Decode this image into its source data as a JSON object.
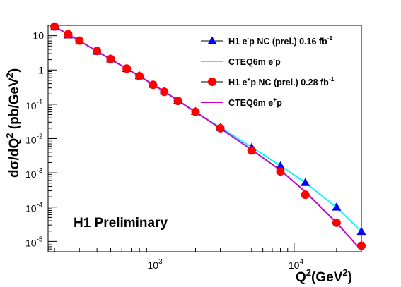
{
  "chart_data": {
    "type": "scatter",
    "xscale": "log",
    "yscale": "log",
    "xlim": [
      180,
      30000
    ],
    "ylim": [
      5e-06,
      20
    ],
    "xlabel": {
      "base": "Q",
      "sup": "2",
      "rest": "(GeV",
      "sup2": "2",
      "close": ")"
    },
    "ylabel": {
      "parts": [
        "dσ/dQ",
        "2",
        " (pb/GeV",
        "2",
        ")"
      ]
    },
    "x_ticks": [
      {
        "value": 1000,
        "base": "10",
        "exp": "3"
      },
      {
        "value": 10000,
        "base": "10",
        "exp": "4"
      }
    ],
    "y_ticks": [
      {
        "value": 10,
        "label": "10"
      },
      {
        "value": 1,
        "label": "1"
      },
      {
        "value": 0.1,
        "base": "10",
        "exp": "-1"
      },
      {
        "value": 0.01,
        "base": "10",
        "exp": "-2"
      },
      {
        "value": 0.001,
        "base": "10",
        "exp": "-3"
      },
      {
        "value": 0.0001,
        "base": "10",
        "exp": "-4"
      },
      {
        "value": 1e-05,
        "base": "10",
        "exp": "-5"
      }
    ],
    "annotation": "H1 Preliminary",
    "legend_position": "top-right",
    "series": [
      {
        "name": "H1 e-p NC (prel.) 0.16 fb-1",
        "legend_parts": [
          "H1 e",
          "-",
          "p NC (prel.) 0.16 fb",
          "-1"
        ],
        "marker": "triangle",
        "color": "#0000ff",
        "points": [
          [
            200,
            18
          ],
          [
            250,
            10.5
          ],
          [
            300,
            7.0
          ],
          [
            400,
            3.5
          ],
          [
            500,
            2.1
          ],
          [
            650,
            1.1
          ],
          [
            800,
            0.68
          ],
          [
            1000,
            0.38
          ],
          [
            1200,
            0.24
          ],
          [
            1500,
            0.13
          ],
          [
            2000,
            0.062
          ],
          [
            3000,
            0.021
          ],
          [
            5000,
            0.0055
          ],
          [
            8000,
            0.0016
          ],
          [
            12000,
            0.00052
          ],
          [
            20000,
            0.0001
          ],
          [
            30000,
            1.95e-05
          ]
        ]
      },
      {
        "name": "CTEQ6m e-p",
        "legend_parts": [
          "CTEQ6m e",
          "-",
          "p",
          ""
        ],
        "marker": "line",
        "color": "#00ffff",
        "points": [
          [
            200,
            18.5
          ],
          [
            300,
            7.1
          ],
          [
            500,
            2.05
          ],
          [
            800,
            0.67
          ],
          [
            1200,
            0.24
          ],
          [
            2000,
            0.06
          ],
          [
            3000,
            0.021
          ],
          [
            5000,
            0.0056
          ],
          [
            8000,
            0.0016
          ],
          [
            12000,
            0.00052
          ],
          [
            20000,
            9.8e-05
          ],
          [
            30000,
            1.95e-05
          ]
        ]
      },
      {
        "name": "H1 e+p NC (prel.) 0.28 fb-1",
        "legend_parts": [
          "H1 e",
          "+",
          "p NC (prel.) 0.28 fb",
          "-1"
        ],
        "marker": "circle",
        "color": "#ff0000",
        "points": [
          [
            200,
            18.5
          ],
          [
            250,
            11
          ],
          [
            300,
            7.2
          ],
          [
            400,
            3.6
          ],
          [
            500,
            2.1
          ],
          [
            650,
            1.1
          ],
          [
            800,
            0.66
          ],
          [
            1000,
            0.37
          ],
          [
            1200,
            0.23
          ],
          [
            1500,
            0.125
          ],
          [
            2000,
            0.06
          ],
          [
            3000,
            0.02
          ],
          [
            5000,
            0.0045
          ],
          [
            8000,
            0.0011
          ],
          [
            12000,
            0.00023
          ],
          [
            20000,
            3.5e-05
          ],
          [
            30000,
            7.5e-06
          ]
        ]
      },
      {
        "name": "CTEQ6m e+p",
        "legend_parts": [
          "CTEQ6m e",
          "+",
          "p",
          ""
        ],
        "marker": "line",
        "color": "#cc00cc",
        "points": [
          [
            200,
            18.5
          ],
          [
            300,
            7.1
          ],
          [
            500,
            2.05
          ],
          [
            800,
            0.66
          ],
          [
            1200,
            0.235
          ],
          [
            2000,
            0.059
          ],
          [
            3000,
            0.02
          ],
          [
            5000,
            0.0047
          ],
          [
            8000,
            0.0012
          ],
          [
            12000,
            0.00028
          ],
          [
            20000,
            3.5e-05
          ],
          [
            30000,
            5.5e-06
          ]
        ]
      }
    ]
  }
}
